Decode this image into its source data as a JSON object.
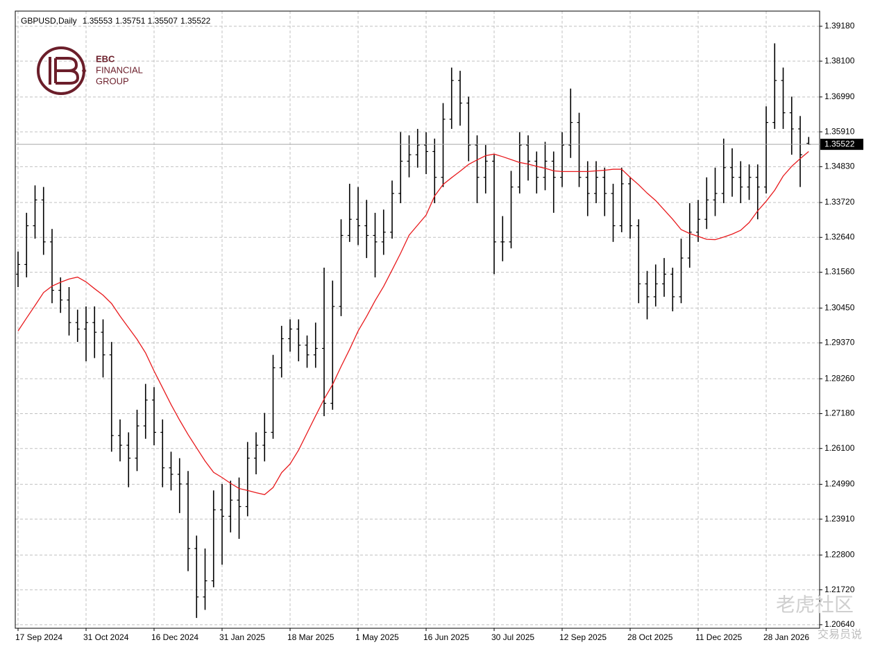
{
  "chart_data": {
    "type": "ohlc",
    "symbol": "GBPUSD,Daily",
    "brand": [
      "EBC",
      "FINANCIAL",
      "GROUP"
    ],
    "watermarks": [
      "老虎社区",
      "交易员说"
    ],
    "color": "#000000",
    "grid": true,
    "categories": [
      "17 Sep 2024",
      null,
      null,
      null,
      null,
      null,
      null,
      null,
      "31 Oct 2024",
      null,
      null,
      null,
      null,
      null,
      null,
      null,
      "16 Dec 2024",
      null,
      null,
      null,
      null,
      null,
      null,
      null,
      "31 Jan 2025",
      null,
      null,
      null,
      null,
      null,
      null,
      null,
      "18 Mar 2025",
      null,
      null,
      null,
      null,
      null,
      null,
      null,
      "1 May 2025",
      null,
      null,
      null,
      null,
      null,
      null,
      null,
      "16 Jun 2025",
      null,
      null,
      null,
      null,
      null,
      null,
      null,
      "30 Jul 2025",
      null,
      null,
      null,
      null,
      null,
      null,
      null,
      "12 Sep 2025",
      null,
      null,
      null,
      null,
      null,
      null,
      null,
      "28 Oct 2025",
      null,
      null,
      null,
      null,
      null,
      null,
      null,
      "11 Dec 2025",
      null,
      null,
      null,
      null,
      null,
      null,
      null,
      "28 Jan 2026",
      null,
      null,
      null,
      null,
      null
    ],
    "open": [
      1.315,
      1.318,
      1.33,
      1.338,
      1.325,
      1.31,
      1.307,
      1.3,
      1.298,
      1.3,
      1.297,
      1.29,
      1.265,
      1.262,
      1.258,
      1.268,
      1.276,
      1.266,
      1.255,
      1.253,
      1.25,
      1.23,
      1.215,
      1.22,
      1.242,
      1.24,
      1.245,
      1.243,
      1.258,
      1.262,
      1.266,
      1.286,
      1.295,
      1.298,
      1.293,
      1.29,
      1.292,
      1.275,
      1.305,
      1.327,
      1.332,
      1.33,
      1.327,
      1.325,
      1.328,
      1.34,
      1.35,
      1.352,
      1.355,
      1.353,
      1.345,
      1.363,
      1.375,
      1.368,
      1.355,
      1.345,
      1.35,
      1.325,
      1.325,
      1.342,
      1.355,
      1.35,
      1.345,
      1.35,
      1.345,
      1.355,
      1.362,
      1.345,
      1.34,
      1.345,
      1.34,
      1.33,
      1.343,
      1.33,
      1.312,
      1.308,
      1.312,
      1.315,
      1.308,
      1.32,
      1.328,
      1.332,
      1.338,
      1.34,
      1.348,
      1.345,
      1.342,
      1.345,
      1.342,
      1.362,
      1.375,
      1.365,
      1.36,
      1.35553
    ],
    "high": [
      1.322,
      1.334,
      1.3425,
      1.342,
      1.329,
      1.314,
      1.311,
      1.304,
      1.305,
      1.305,
      1.301,
      1.294,
      1.27,
      1.266,
      1.273,
      1.281,
      1.28,
      1.27,
      1.26,
      1.258,
      1.254,
      1.234,
      1.23,
      1.248,
      1.25,
      1.251,
      1.252,
      1.263,
      1.266,
      1.272,
      1.29,
      1.299,
      1.301,
      1.301,
      1.296,
      1.3,
      1.317,
      1.313,
      1.332,
      1.343,
      1.342,
      1.338,
      1.334,
      1.335,
      1.344,
      1.359,
      1.358,
      1.36,
      1.359,
      1.357,
      1.368,
      1.379,
      1.378,
      1.37,
      1.358,
      1.355,
      1.352,
      1.333,
      1.347,
      1.359,
      1.358,
      1.353,
      1.356,
      1.353,
      1.359,
      1.3725,
      1.365,
      1.35,
      1.35,
      1.348,
      1.343,
      1.348,
      1.345,
      1.332,
      1.316,
      1.318,
      1.32,
      1.317,
      1.326,
      1.337,
      1.338,
      1.345,
      1.348,
      1.357,
      1.354,
      1.35,
      1.349,
      1.349,
      1.367,
      1.3865,
      1.379,
      1.37,
      1.364,
      1.35751
    ],
    "low": [
      1.311,
      1.314,
      1.326,
      1.321,
      1.306,
      1.303,
      1.296,
      1.294,
      1.288,
      1.289,
      1.283,
      1.26,
      1.257,
      1.249,
      1.254,
      1.264,
      1.262,
      1.249,
      1.248,
      1.241,
      1.223,
      1.2085,
      1.211,
      1.218,
      1.225,
      1.235,
      1.233,
      1.24,
      1.253,
      1.257,
      1.264,
      1.283,
      1.291,
      1.288,
      1.286,
      1.286,
      1.271,
      1.273,
      1.302,
      1.325,
      1.324,
      1.32,
      1.314,
      1.321,
      1.326,
      1.337,
      1.345,
      1.348,
      1.346,
      1.337,
      1.342,
      1.36,
      1.361,
      1.35,
      1.337,
      1.34,
      1.315,
      1.319,
      1.323,
      1.34,
      1.344,
      1.34,
      1.341,
      1.334,
      1.342,
      1.351,
      1.342,
      1.333,
      1.337,
      1.333,
      1.325,
      1.328,
      1.326,
      1.306,
      1.301,
      1.305,
      1.308,
      1.3035,
      1.306,
      1.317,
      1.325,
      1.329,
      1.333,
      1.337,
      1.339,
      1.337,
      1.338,
      1.332,
      1.34,
      1.36,
      1.36,
      1.352,
      1.342,
      1.35507
    ],
    "close": [
      1.318,
      1.33,
      1.338,
      1.325,
      1.31,
      1.307,
      1.3,
      1.298,
      1.3,
      1.297,
      1.29,
      1.265,
      1.262,
      1.258,
      1.268,
      1.276,
      1.266,
      1.255,
      1.253,
      1.25,
      1.23,
      1.215,
      1.22,
      1.242,
      1.24,
      1.245,
      1.243,
      1.258,
      1.262,
      1.266,
      1.286,
      1.295,
      1.298,
      1.293,
      1.29,
      1.292,
      1.275,
      1.305,
      1.327,
      1.332,
      1.33,
      1.327,
      1.325,
      1.328,
      1.34,
      1.35,
      1.352,
      1.355,
      1.353,
      1.345,
      1.363,
      1.375,
      1.368,
      1.355,
      1.345,
      1.35,
      1.325,
      1.325,
      1.342,
      1.355,
      1.35,
      1.345,
      1.35,
      1.345,
      1.355,
      1.362,
      1.345,
      1.34,
      1.345,
      1.34,
      1.33,
      1.343,
      1.33,
      1.312,
      1.308,
      1.312,
      1.315,
      1.308,
      1.32,
      1.328,
      1.332,
      1.338,
      1.34,
      1.348,
      1.345,
      1.342,
      1.345,
      1.342,
      1.362,
      1.375,
      1.365,
      1.36,
      1.352,
      1.35522
    ],
    "ma": {
      "color": "#e8191c",
      "values": [
        1.2974,
        1.3014,
        1.3053,
        1.3093,
        1.3113,
        1.3125,
        1.3135,
        1.3141,
        1.3126,
        1.3105,
        1.3085,
        1.3059,
        1.302,
        1.2984,
        1.2948,
        1.2906,
        1.285,
        1.2798,
        1.2746,
        1.2698,
        1.2653,
        1.2612,
        1.2571,
        1.2536,
        1.252,
        1.2502,
        1.2486,
        1.248,
        1.2473,
        1.2467,
        1.2489,
        1.2535,
        1.2562,
        1.2605,
        1.2658,
        1.2711,
        1.2763,
        1.2808,
        1.2864,
        1.2917,
        1.2974,
        1.3019,
        1.3068,
        1.3112,
        1.3163,
        1.3215,
        1.3271,
        1.3302,
        1.3333,
        1.3392,
        1.3428,
        1.3449,
        1.3469,
        1.349,
        1.3504,
        1.3517,
        1.3522,
        1.3514,
        1.3505,
        1.3496,
        1.3491,
        1.3484,
        1.3478,
        1.347,
        1.3468,
        1.3468,
        1.3468,
        1.3468,
        1.347,
        1.3472,
        1.3475,
        1.3475,
        1.345,
        1.3427,
        1.3401,
        1.3378,
        1.3349,
        1.332,
        1.3288,
        1.3276,
        1.3267,
        1.3258,
        1.3257,
        1.3265,
        1.3274,
        1.3286,
        1.331,
        1.3346,
        1.3376,
        1.341,
        1.3454,
        1.3484,
        1.3508,
        1.353
      ]
    },
    "ylim": [
      1.2053,
      1.3965
    ],
    "yticks": [
      {
        "value": 1.3918,
        "label": "1.39180"
      },
      {
        "value": 1.381,
        "label": "1.38100"
      },
      {
        "value": 1.3699,
        "label": "1.36990"
      },
      {
        "value": 1.3591,
        "label": "1.35910"
      },
      {
        "value": 1.3483,
        "label": "1.34830"
      },
      {
        "value": 1.3372,
        "label": "1.33720"
      },
      {
        "value": 1.3264,
        "label": "1.32640"
      },
      {
        "value": 1.3156,
        "label": "1.31560"
      },
      {
        "value": 1.3045,
        "label": "1.30450"
      },
      {
        "value": 1.2937,
        "label": "1.29370"
      },
      {
        "value": 1.2826,
        "label": "1.28260"
      },
      {
        "value": 1.2718,
        "label": "1.27180"
      },
      {
        "value": 1.261,
        "label": "1.26100"
      },
      {
        "value": 1.2499,
        "label": "1.24990"
      },
      {
        "value": 1.2391,
        "label": "1.23910"
      },
      {
        "value": 1.228,
        "label": "1.22800"
      },
      {
        "value": 1.2172,
        "label": "1.21720"
      },
      {
        "value": 1.2064,
        "label": "1.20640"
      }
    ]
  }
}
